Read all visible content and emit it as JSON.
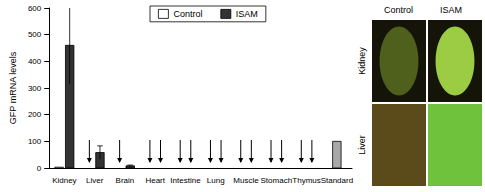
{
  "chart_data": {
    "type": "bar",
    "y_label": "GFP mRNA levels",
    "categories": [
      "Kidney",
      "Liver",
      "Brain",
      "Heart",
      "Intestine",
      "Lung",
      "Muscle",
      "Stomach",
      "Thymus",
      "Standard"
    ],
    "series": [
      {
        "name": "Control",
        "color": "#ffffff",
        "values": [
          3,
          null,
          null,
          null,
          null,
          null,
          null,
          null,
          null,
          null
        ],
        "errors": [
          null,
          null,
          null,
          null,
          null,
          null,
          null,
          null,
          null,
          null
        ],
        "not_detected": [
          false,
          true,
          true,
          true,
          true,
          true,
          true,
          true,
          true,
          false
        ]
      },
      {
        "name": "ISAM",
        "color": "#333333",
        "values": [
          460,
          58,
          8,
          null,
          null,
          null,
          null,
          null,
          null,
          null
        ],
        "errors": [
          145,
          25,
          3,
          null,
          null,
          null,
          null,
          null,
          null,
          null
        ],
        "not_detected": [
          false,
          false,
          false,
          true,
          true,
          true,
          true,
          true,
          true,
          false
        ]
      },
      {
        "name": "Standard",
        "color": "#a8a8a8",
        "values": [
          null,
          null,
          null,
          null,
          null,
          null,
          null,
          null,
          null,
          100
        ],
        "errors": [
          null,
          null,
          null,
          null,
          null,
          null,
          null,
          null,
          null,
          null
        ],
        "not_detected": [
          false,
          false,
          false,
          false,
          false,
          false,
          false,
          false,
          false,
          false
        ]
      }
    ],
    "ylim": [
      0,
      600
    ],
    "yticks": [
      0,
      100,
      200,
      300,
      400,
      500,
      600
    ],
    "grid": false,
    "legend": "top"
  },
  "image_panel": {
    "columns": [
      "Control",
      "ISAM"
    ],
    "rows": [
      "Kidney",
      "Liver"
    ]
  }
}
